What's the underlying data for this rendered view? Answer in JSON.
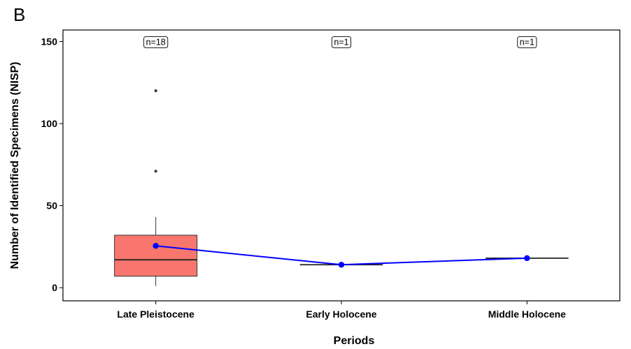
{
  "panel_label": "B",
  "chart_data": {
    "type": "box",
    "xlabel": "Periods",
    "ylabel": "Number of Identified Specimens (NISP)",
    "ylim": [
      -8,
      157
    ],
    "yticks": [
      0,
      50,
      100,
      150
    ],
    "categories": [
      "Late Pleistocene",
      "Early Holocene",
      "Middle Holocene"
    ],
    "sample_sizes": [
      "n=18",
      "n=1",
      "n=1"
    ],
    "boxes": [
      {
        "category": "Late Pleistocene",
        "min": 1,
        "q1": 7,
        "median": 17,
        "q3": 32,
        "max": 43,
        "outliers": [
          71,
          120
        ]
      },
      {
        "category": "Early Holocene",
        "min": 14,
        "q1": 14,
        "median": 14,
        "q3": 14,
        "max": 14,
        "outliers": []
      },
      {
        "category": "Middle Holocene",
        "min": 18,
        "q1": 18,
        "median": 18,
        "q3": 18,
        "max": 18,
        "outliers": []
      }
    ],
    "mean_line": {
      "values": [
        25.5,
        14,
        18
      ],
      "color": "#0000ff"
    },
    "box_fill": "#f8766d",
    "grid": false,
    "legend": "none"
  }
}
